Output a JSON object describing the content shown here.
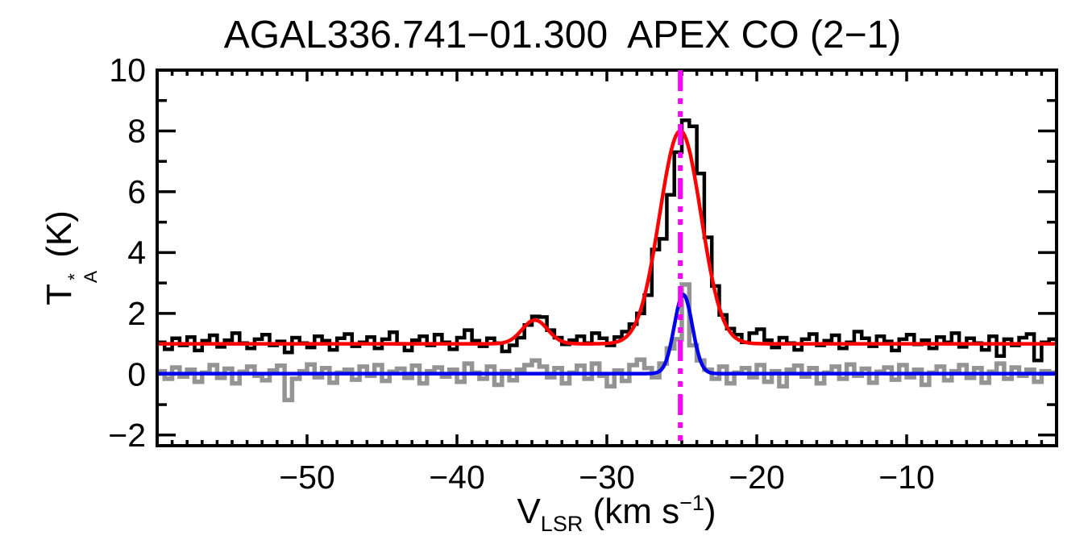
{
  "chart_data": {
    "type": "line",
    "title": "AGAL336.741−01.300  APEX CO (2−1)",
    "xlabel": {
      "symbol": "V",
      "subscript": "LSR",
      "unit_prefix": " (km s",
      "unit_exponent": "−1",
      "unit_suffix": ")"
    },
    "ylabel": {
      "symbol": "T",
      "superscript": "*",
      "subscript": "A",
      "unit": " (K)"
    },
    "x_axis": {
      "min": -60,
      "max": 0,
      "major_ticks": [
        -50,
        -40,
        -30,
        -20,
        -10
      ],
      "major_tick_labels": [
        "−50",
        "−40",
        "−30",
        "−20",
        "−10"
      ],
      "minor_tick_step": 1
    },
    "y_axis": {
      "min": -2.35,
      "max": 10,
      "major_ticks": [
        -2,
        0,
        2,
        4,
        6,
        8,
        10
      ],
      "major_tick_labels": [
        "−2",
        "0",
        "2",
        "4",
        "6",
        "8",
        "10"
      ],
      "minor_tick_step": 1
    },
    "histograms": [
      {
        "name": "observed-co-spectrum",
        "color": "#000000",
        "line_width": 4.5,
        "v_start": -59.75,
        "v_step": 0.5,
        "values": [
          1.05,
          0.82,
          1.18,
          0.95,
          1.22,
          0.78,
          1.1,
          1.28,
          0.9,
          1.12,
          1.35,
          1.02,
          0.85,
          1.15,
          1.3,
          0.95,
          1.08,
          0.72,
          1.2,
          1.02,
          0.88,
          1.25,
          1.1,
          0.8,
          1.18,
          1.32,
          0.92,
          1.05,
          1.22,
          0.85,
          1.15,
          1.38,
          1.0,
          0.78,
          1.12,
          1.25,
          0.95,
          1.3,
          1.05,
          0.82,
          1.2,
          1.45,
          1.1,
          0.92,
          1.18,
          1.02,
          0.75,
          0.95,
          1.2,
          1.62,
          1.9,
          1.88,
          1.45,
          1.2,
          0.98,
          1.12,
          1.25,
          1.02,
          1.35,
          1.18,
          0.95,
          1.22,
          1.4,
          1.65,
          2.0,
          2.6,
          4.1,
          4.45,
          5.9,
          7.3,
          8.35,
          8.15,
          6.6,
          4.5,
          2.9,
          1.95,
          1.5,
          1.3,
          1.05,
          1.35,
          1.48,
          1.12,
          0.88,
          1.2,
          1.02,
          0.8,
          1.15,
          1.32,
          0.95,
          1.1,
          1.28,
          0.85,
          1.05,
          1.4,
          1.18,
          0.92,
          1.25,
          1.08,
          0.78,
          1.15,
          1.3,
          0.98,
          1.12,
          0.85,
          1.22,
          1.05,
          1.35,
          0.9,
          1.18,
          1.02,
          0.8,
          1.25,
          0.6,
          1.15,
          0.95,
          1.2,
          1.32,
          0.45,
          1.05,
          1.15
        ]
      },
      {
        "name": "offset-reference-spectrum",
        "color": "#949494",
        "line_width": 5.5,
        "v_start": -59.75,
        "v_step": 0.5,
        "values": [
          0.1,
          -0.15,
          0.22,
          -0.08,
          0.15,
          -0.25,
          0.05,
          0.3,
          -0.12,
          0.18,
          -0.3,
          0.08,
          0.25,
          -0.05,
          -0.2,
          0.12,
          0.28,
          -0.85,
          -0.15,
          0.1,
          0.32,
          -0.1,
          0.2,
          -0.28,
          0.05,
          0.15,
          -0.18,
          0.25,
          -0.05,
          0.3,
          -0.22,
          0.08,
          0.18,
          -0.12,
          0.28,
          -0.3,
          0.1,
          0.22,
          -0.08,
          0.15,
          -0.25,
          0.35,
          0.05,
          -0.15,
          0.25,
          -0.35,
          0.1,
          -0.2,
          0.15,
          0.3,
          0.45,
          0.25,
          -0.1,
          0.2,
          -0.3,
          0.05,
          0.28,
          -0.15,
          0.35,
          -0.05,
          -0.4,
          0.12,
          -0.22,
          0.3,
          0.48,
          0.2,
          -0.1,
          0.35,
          0.85,
          1.15,
          2.95,
          0.95,
          0.45,
          0.15,
          -0.15,
          0.25,
          -0.3,
          0.05,
          0.2,
          -0.1,
          0.3,
          -0.25,
          0.1,
          -0.4,
          0.15,
          0.28,
          -0.08,
          0.2,
          -0.3,
          0.05,
          0.25,
          -0.15,
          0.32,
          -0.05,
          0.18,
          -0.28,
          0.08,
          0.22,
          -0.18,
          0.3,
          -0.1,
          0.15,
          -0.35,
          0.05,
          0.25,
          -0.2,
          0.1,
          0.3,
          -0.12,
          0.2,
          -0.28,
          0.08,
          0.35,
          -0.15,
          0.22,
          -0.05,
          0.15,
          -0.25,
          0.1,
          0.05
        ]
      }
    ],
    "fit_curves": [
      {
        "name": "gaussian-fit-main",
        "color": "#ff0000",
        "line_width": 4.5,
        "baseline": 1.0,
        "components": [
          {
            "amplitude": 7.0,
            "center": -25.1,
            "sigma": 1.38
          },
          {
            "amplitude": 0.78,
            "center": -34.8,
            "sigma": 0.85
          }
        ]
      },
      {
        "name": "gaussian-fit-narrow",
        "color": "#0000ee",
        "line_width": 4.5,
        "baseline": 0.02,
        "components": [
          {
            "amplitude": 2.6,
            "center": -24.9,
            "sigma": 0.6
          }
        ]
      }
    ],
    "marker_line": {
      "velocity": -25.1,
      "color": "#ff00ff",
      "line_width": 6,
      "style": "dash-dot-dot"
    }
  }
}
